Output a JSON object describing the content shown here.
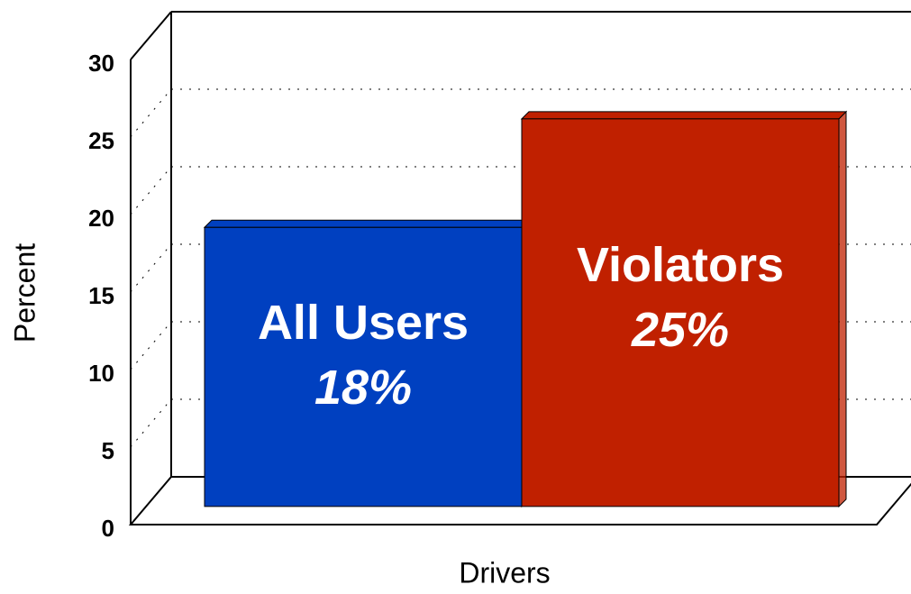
{
  "chart_data": {
    "type": "bar3d",
    "x_label": "Drivers",
    "y_label": "Percent",
    "categories": [
      "All Users",
      "Violators"
    ],
    "values": [
      18,
      25
    ],
    "value_labels": [
      "18%",
      "25%"
    ],
    "colors": [
      "#0040c0",
      "#c02000"
    ],
    "ylim": [
      0,
      30
    ],
    "yticks": [
      0,
      5,
      10,
      15,
      20,
      25,
      30
    ],
    "grid": true
  }
}
